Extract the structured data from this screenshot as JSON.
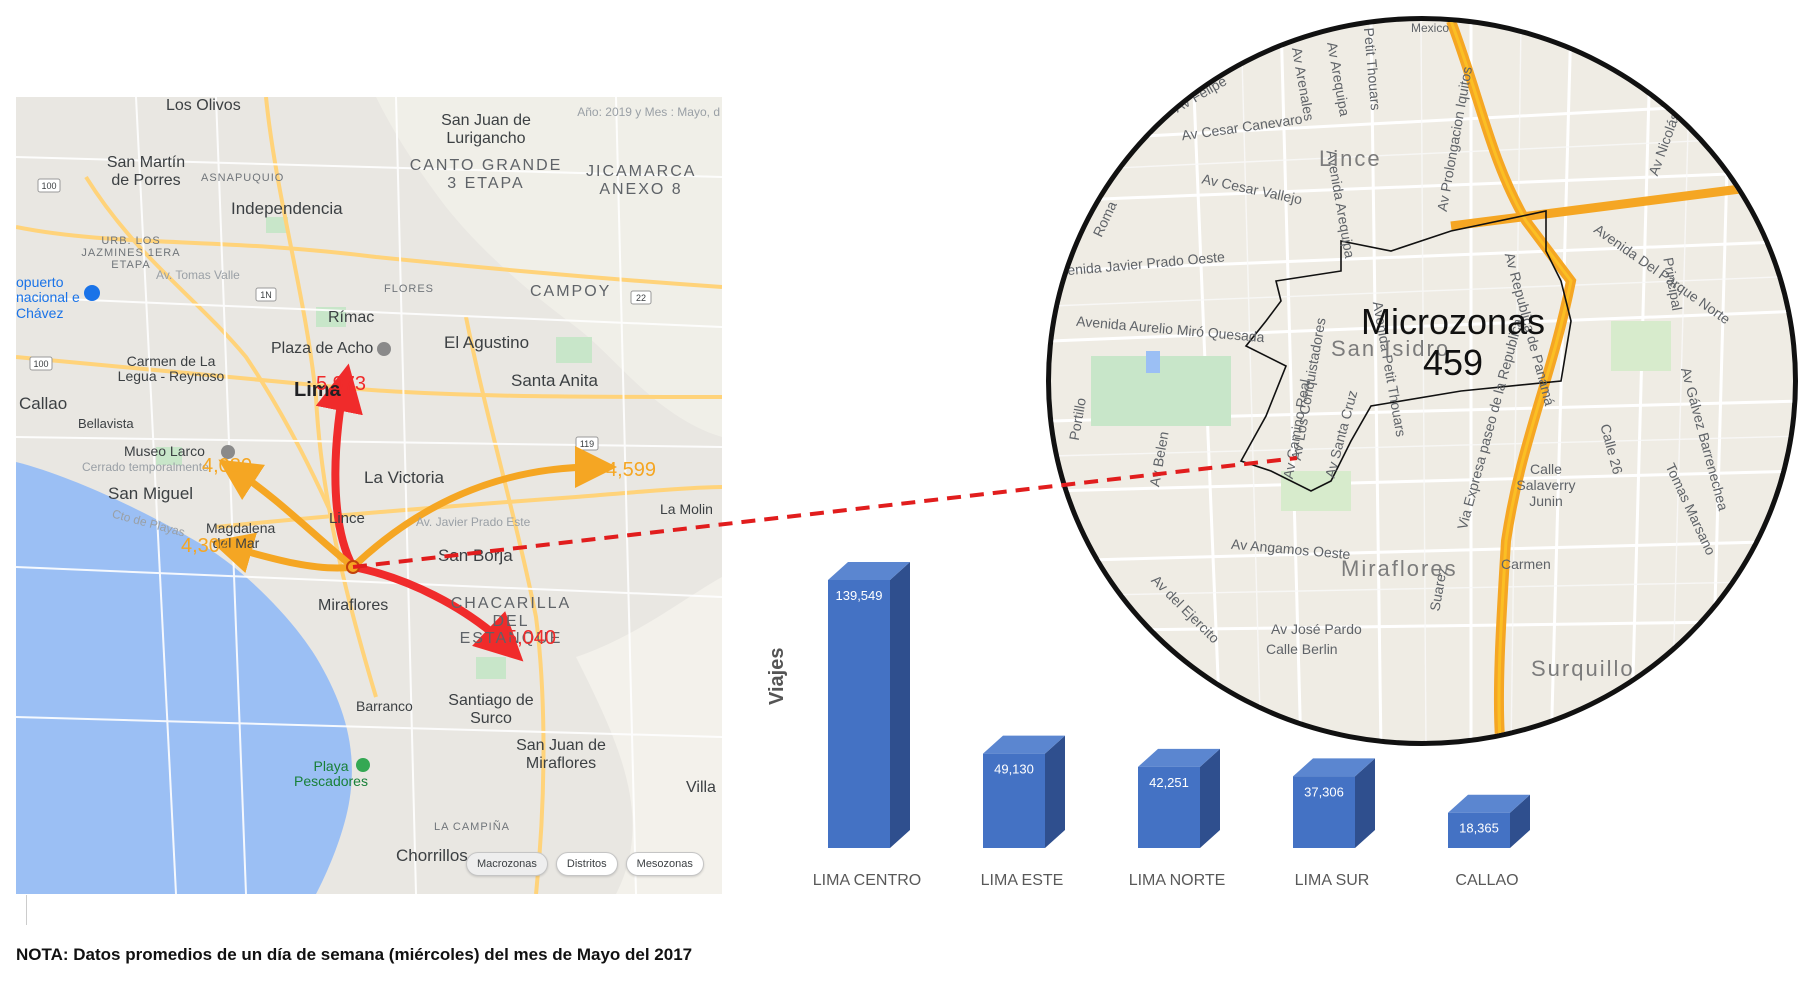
{
  "left_map": {
    "watermark": "Año: 2019 y Mes : Mayo, d",
    "places": [
      {
        "name": "Los Olivos",
        "style": "",
        "flow_id": null
      },
      {
        "name": "San Juan de Lurigancho",
        "style": ""
      },
      {
        "name": "San Martín de Porres",
        "style": ""
      },
      {
        "name": "CANTO GRANDE 3 ETAPA",
        "style": "caps"
      },
      {
        "name": "JICAMARCA ANEXO 8",
        "style": "caps"
      },
      {
        "name": "ASNAPUQUIO",
        "style": "small"
      },
      {
        "name": "Independencia",
        "style": ""
      },
      {
        "name": "URB. LOS JAZMINES 1ERA ETAPA",
        "style": "small"
      },
      {
        "name": "Av. Tomas Valle",
        "style": "faint"
      },
      {
        "name": "FLORES",
        "style": "small"
      },
      {
        "name": "CAMPOY",
        "style": "caps"
      },
      {
        "name": "opuerto nacional e Chávez",
        "style": "blue"
      },
      {
        "name": "Rímac",
        "style": ""
      },
      {
        "name": "Plaza de Acho",
        "style": ""
      },
      {
        "name": "El Agustino",
        "style": ""
      },
      {
        "name": "Carmen de La Legua - Reynoso",
        "style": ""
      },
      {
        "name": "Lima",
        "style": "big"
      },
      {
        "name": "Santa Anita",
        "style": ""
      },
      {
        "name": "Callao",
        "style": ""
      },
      {
        "name": "Bellavista",
        "style": ""
      },
      {
        "name": "Museo Larco",
        "style": ""
      },
      {
        "name": "Cerrado temporalmente",
        "style": "faint"
      },
      {
        "name": "La Victoria",
        "style": ""
      },
      {
        "name": "San Miguel",
        "style": ""
      },
      {
        "name": "Lince",
        "style": ""
      },
      {
        "name": "La Molin",
        "style": ""
      },
      {
        "name": "Magdalena del Mar",
        "style": ""
      },
      {
        "name": "Av. Javier Prado Este",
        "style": "faint"
      },
      {
        "name": "Cto de Playas",
        "style": "faint"
      },
      {
        "name": "San Borja",
        "style": ""
      },
      {
        "name": "Miraflores",
        "style": ""
      },
      {
        "name": "CHACARILLA DEL ESTANQUE",
        "style": "caps"
      },
      {
        "name": "Barranco",
        "style": ""
      },
      {
        "name": "Santiago de Surco",
        "style": ""
      },
      {
        "name": "San Juan de Miraflores",
        "style": ""
      },
      {
        "name": "Playa Pescadores",
        "style": "green"
      },
      {
        "name": "Villa",
        "style": ""
      },
      {
        "name": "LA CAMPIÑA",
        "style": "small"
      },
      {
        "name": "Chorrillos",
        "style": ""
      }
    ],
    "road_shields": [
      "100",
      "1N",
      "100",
      "22",
      "119"
    ],
    "flows": [
      {
        "value": "5,973",
        "color": "red"
      },
      {
        "value": "4,080",
        "color": "orange"
      },
      {
        "value": "4,599",
        "color": "orange"
      },
      {
        "value": "4,304",
        "color": "orange"
      },
      {
        "value": "5,040",
        "color": "red"
      }
    ],
    "tabs": [
      "Macrozonas",
      "Distritos",
      "Mesozonas"
    ],
    "colors": {
      "red": "#f02b2b",
      "orange": "#f5a623",
      "sea": "#9bbff4",
      "park": "#c8e6c9"
    }
  },
  "zoom_map": {
    "title_line1": "Microzonas",
    "title_line2": "459",
    "districts": [
      "Lince",
      "San Isidro",
      "Miraflores",
      "Surquillo"
    ],
    "streets": [
      "Mexico",
      "Av Arequipa",
      "Av Arenales",
      "Petit Thouars",
      "Av Prolongacion Iquitos",
      "Av Cesar Canevaro",
      "Av Cesar Vallejo",
      "Av Felipe",
      "Roma",
      "Avenida Arequipa",
      "Av Nicolás",
      "Avenida Del Parque Norte",
      "Principal",
      "Avenida Javier Prado Oeste",
      "Avenida Aurelio Miró Quesada",
      "Portillo",
      "Av Los Conquistadores",
      "Av Santa Cruz",
      "Avenida Petit Thouars",
      "Av Republica de Panamá",
      "Via Expresa paseo de la Republica",
      "Av Gálvez Barrenechea",
      "Calle 26",
      "Tomas Marsano",
      "Calle Salaverry Junin",
      "Av Angamos Oeste",
      "Av del Ejercito",
      "Av José Pardo",
      "Calle Berlin",
      "Carmen",
      "Suarez",
      "Av Belen",
      "Av Camino Real"
    ],
    "colors": {
      "highway": "#f5a623",
      "border": "#111111"
    }
  },
  "chart_data": {
    "type": "bar",
    "categories": [
      "LIMA CENTRO",
      "LIMA ESTE",
      "LIMA NORTE",
      "LIMA SUR",
      "CALLAO"
    ],
    "values": [
      139549,
      49130,
      42251,
      37306,
      18365
    ],
    "value_labels": [
      "139,549",
      "49,130",
      "42,251",
      "37,306",
      "18,365"
    ],
    "ylabel": "Viajes",
    "xlabel": "",
    "title": "",
    "style": "3d-column",
    "grid": false,
    "colors": {
      "front": "#4472c4",
      "side": "#2f4f8e",
      "top": "#5b86d0"
    }
  },
  "note": "NOTA: Datos promedios de un día de semana (miércoles) del mes de Mayo del 2017"
}
